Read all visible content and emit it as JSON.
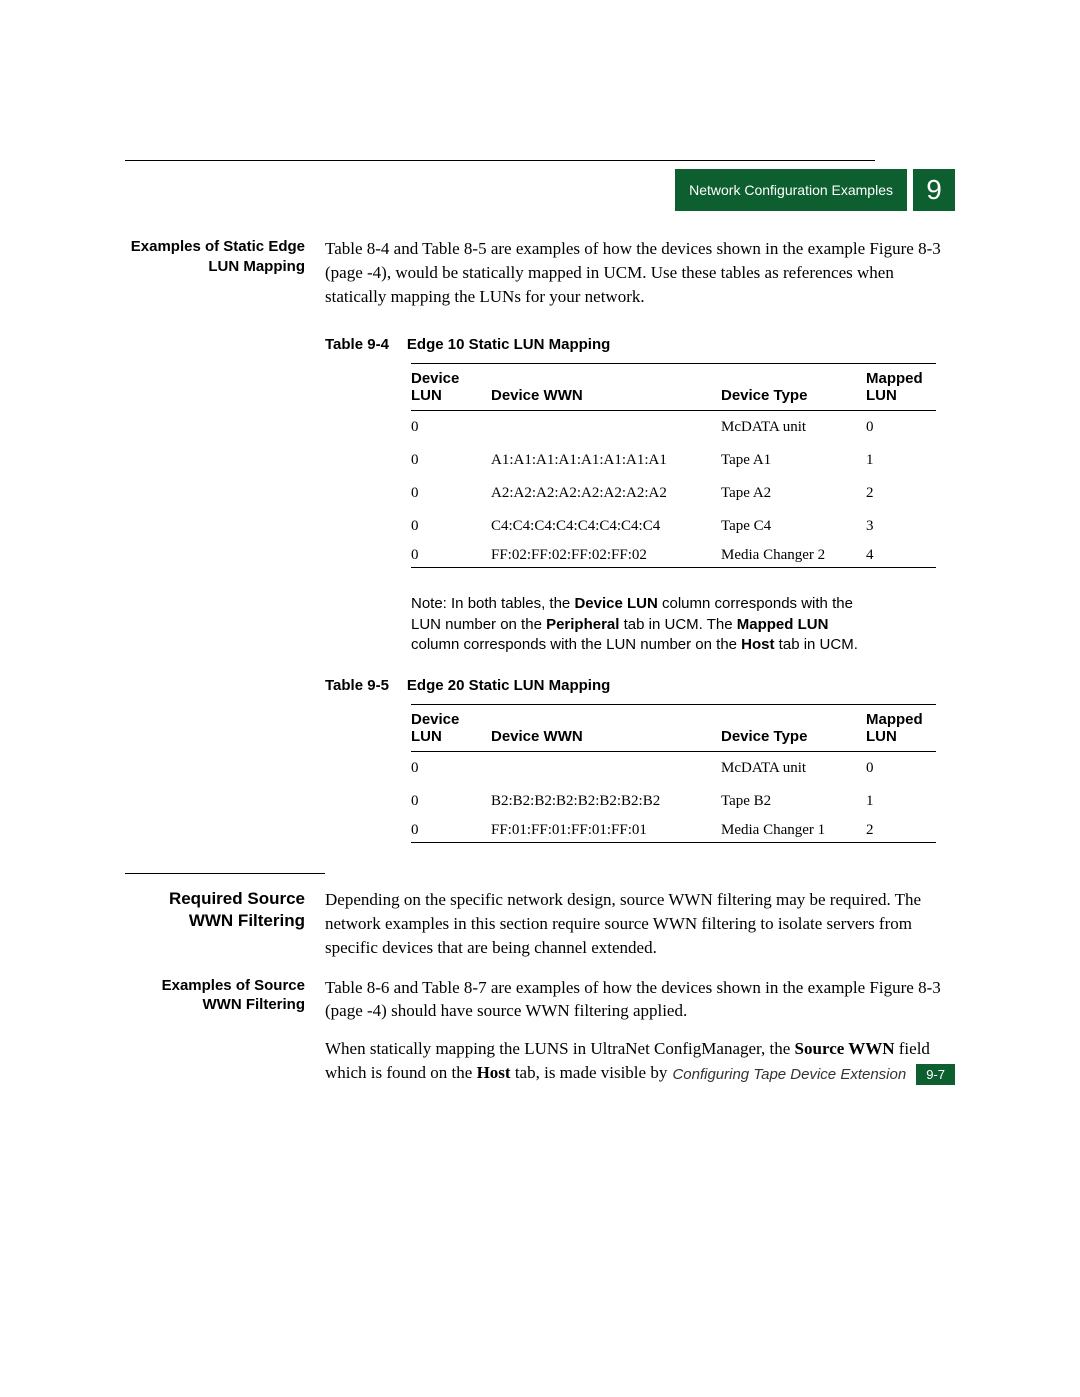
{
  "header": {
    "breadcrumb": "Network Configuration Examples",
    "chapter": "9"
  },
  "sections": {
    "static_mapping": {
      "label": "Examples of Static Edge LUN Mapping",
      "body": "Table 8-4 and Table 8-5 are examples of how the devices shown in the example Figure 8-3 (page -4), would be statically mapped in UCM. Use these tables as references when statically mapping the LUNs for your network."
    },
    "required_source": {
      "label": "Required Source WWN Filtering",
      "body": "Depending on the specific network design, source WWN filtering may be required. The network examples in this section require source WWN filtering to isolate servers from specific devices that are being channel extended."
    },
    "source_filtering": {
      "label": "Examples of Source WWN Filtering",
      "body1": "Table 8-6 and Table 8-7 are examples of how the devices shown in the example Figure 8-3 (page -4) should have source WWN filtering applied.",
      "body2_pre": "When statically mapping the LUNS in UltraNet ConfigManager, the ",
      "body2_bold1": "Source WWN",
      "body2_mid": " field which is found on the ",
      "body2_bold2": "Host",
      "body2_post": " tab, is made visible by"
    }
  },
  "table1": {
    "number": "Table 9-4",
    "title": "Edge 10 Static LUN Mapping",
    "headers": {
      "c1a": "Device",
      "c1b": "LUN",
      "c2": "Device WWN",
      "c3": "Device Type",
      "c4a": "Mapped",
      "c4b": "LUN"
    },
    "rows": [
      {
        "lun": "0",
        "wwn": "",
        "type": "McDATA unit",
        "mapped": "0"
      },
      {
        "lun": "0",
        "wwn": "A1:A1:A1:A1:A1:A1:A1:A1",
        "type": "Tape A1",
        "mapped": "1"
      },
      {
        "lun": "0",
        "wwn": "A2:A2:A2:A2:A2:A2:A2:A2",
        "type": "Tape A2",
        "mapped": "2"
      },
      {
        "lun": "0",
        "wwn": "C4:C4:C4:C4:C4:C4:C4:C4",
        "type": "Tape C4",
        "mapped": "3"
      },
      {
        "lun": "0",
        "wwn": "FF:02:FF:02:FF:02:FF:02",
        "type": "Media Changer 2",
        "mapped": "4"
      }
    ]
  },
  "note": {
    "pre": "Note:   In both tables, the ",
    "b1": "Device LUN",
    "mid1": " column corresponds with the LUN number on the ",
    "b2": "Peripheral",
    "mid2": " tab in UCM. The ",
    "b3": "Mapped LUN",
    "mid3": " column corresponds with the LUN number on the ",
    "b4": "Host",
    "post": " tab in UCM."
  },
  "table2": {
    "number": "Table 9-5",
    "title": "Edge 20 Static LUN Mapping",
    "headers": {
      "c1a": "Device",
      "c1b": "LUN",
      "c2": "Device WWN",
      "c3": "Device Type",
      "c4a": "Mapped",
      "c4b": "LUN"
    },
    "rows": [
      {
        "lun": "0",
        "wwn": "",
        "type": "McDATA unit",
        "mapped": "0"
      },
      {
        "lun": "0",
        "wwn": "B2:B2:B2:B2:B2:B2:B2:B2",
        "type": "Tape B2",
        "mapped": "1"
      },
      {
        "lun": "0",
        "wwn": "FF:01:FF:01:FF:01:FF:01",
        "type": "Media Changer 1",
        "mapped": "2"
      }
    ]
  },
  "footer": {
    "title": "Configuring Tape Device Extension",
    "page": "9-7"
  }
}
